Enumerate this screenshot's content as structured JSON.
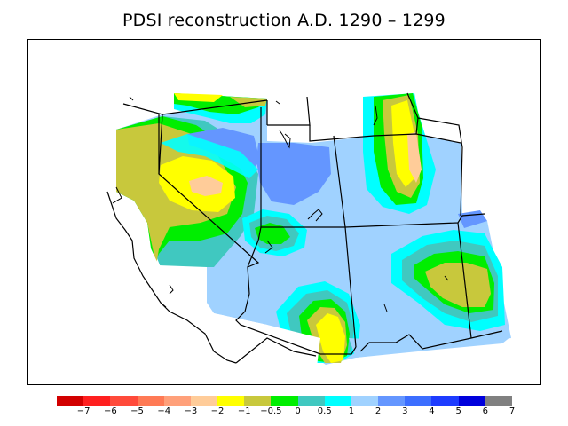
{
  "title": "PDSI reconstruction A.D. 1290 – 1299",
  "legend": {
    "colors": [
      "#d20000",
      "#ff1f1f",
      "#ff4a3a",
      "#ff7a55",
      "#ffa07a",
      "#ffcc99",
      "#ffff00",
      "#c8c83c",
      "#00ee00",
      "#40c8c0",
      "#00ffff",
      "#a0d2ff",
      "#6496ff",
      "#3c6eff",
      "#1e3cff",
      "#0000dc",
      "#808080"
    ],
    "labels": [
      "−7",
      "−6",
      "−5",
      "−4",
      "−3",
      "−2",
      "−1",
      "−0.5",
      "0",
      "0.5",
      "1",
      "2",
      "3",
      "4",
      "5",
      "6",
      "7"
    ]
  },
  "map": {
    "region": "western United States",
    "palette": {
      "yellow": "#ffff00",
      "olive": "#c8c83c",
      "green": "#00ee00",
      "teal": "#40c8c0",
      "cyan": "#00ffff",
      "light_blue": "#a0d2ff",
      "medium_blue": "#6496ff",
      "peach": "#ffcc99"
    }
  }
}
